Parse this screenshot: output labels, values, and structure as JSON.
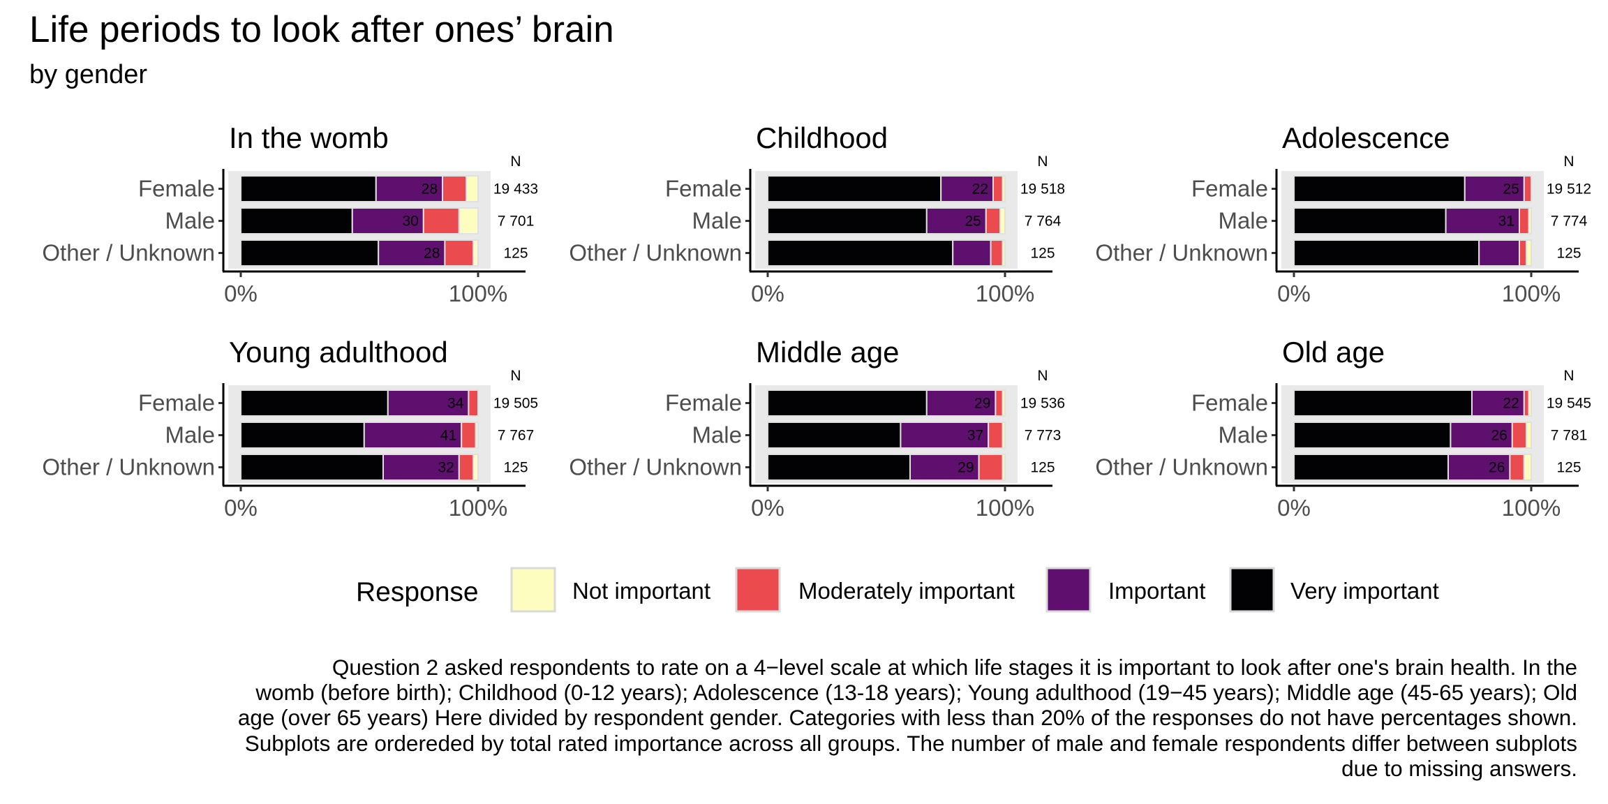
{
  "title": "Life periods to look after ones’ brain",
  "subtitle": "by gender",
  "colors": {
    "not_important": "#FCFDBF",
    "moderately_important": "#EB4B4F",
    "important": "#5F0F6E",
    "very_important": "#020205",
    "panel_background": "#E9E9E9",
    "axis": "#000000"
  },
  "chart_data": {
    "type": "bar",
    "orientation": "horizontal",
    "stacked": true,
    "normalized": true,
    "xlim": [
      0,
      100
    ],
    "x_ticks": [
      "0%",
      "100%"
    ],
    "n_header": "N",
    "categories": [
      "Female",
      "Male",
      "Other / Unknown"
    ],
    "legend": {
      "title": "Response",
      "position": "bottom",
      "items": [
        {
          "key": "not_important",
          "label": "Not important"
        },
        {
          "key": "moderately_important",
          "label": "Moderately important"
        },
        {
          "key": "important",
          "label": "Important"
        },
        {
          "key": "very_important",
          "label": "Very important"
        }
      ]
    },
    "panels": [
      {
        "title": "In the womb",
        "rows": [
          {
            "category": "Female",
            "n": "19 433",
            "very_important": 57,
            "important": 28,
            "moderately_important": 10,
            "not_important": 5,
            "label": "28"
          },
          {
            "category": "Male",
            "n": "7 701",
            "very_important": 47,
            "important": 30,
            "moderately_important": 15,
            "not_important": 8,
            "label": "30"
          },
          {
            "category": "Other / Unknown",
            "n": "125",
            "very_important": 58,
            "important": 28,
            "moderately_important": 12,
            "not_important": 2,
            "label": "28"
          }
        ]
      },
      {
        "title": "Childhood",
        "rows": [
          {
            "category": "Female",
            "n": "19 518",
            "very_important": 73,
            "important": 22,
            "moderately_important": 4,
            "not_important": 1,
            "label": "22"
          },
          {
            "category": "Male",
            "n": "7 764",
            "very_important": 67,
            "important": 25,
            "moderately_important": 6,
            "not_important": 2,
            "label": "25"
          },
          {
            "category": "Other / Unknown",
            "n": "125",
            "very_important": 78,
            "important": 16,
            "moderately_important": 5,
            "not_important": 1,
            "label": ""
          }
        ]
      },
      {
        "title": "Adolescence",
        "rows": [
          {
            "category": "Female",
            "n": "19 512",
            "very_important": 72,
            "important": 25,
            "moderately_important": 3,
            "not_important": 0,
            "label": "25"
          },
          {
            "category": "Male",
            "n": "7 774",
            "very_important": 64,
            "important": 31,
            "moderately_important": 4,
            "not_important": 1,
            "label": "31"
          },
          {
            "category": "Other / Unknown",
            "n": "125",
            "very_important": 78,
            "important": 17,
            "moderately_important": 3,
            "not_important": 2,
            "label": ""
          }
        ]
      },
      {
        "title": "Young adulthood",
        "rows": [
          {
            "category": "Female",
            "n": "19 505",
            "very_important": 62,
            "important": 34,
            "moderately_important": 4,
            "not_important": 0,
            "label": "34"
          },
          {
            "category": "Male",
            "n": "7 767",
            "very_important": 52,
            "important": 41,
            "moderately_important": 6,
            "not_important": 1,
            "label": "41"
          },
          {
            "category": "Other / Unknown",
            "n": "125",
            "very_important": 60,
            "important": 32,
            "moderately_important": 6,
            "not_important": 2,
            "label": "32"
          }
        ]
      },
      {
        "title": "Middle age",
        "rows": [
          {
            "category": "Female",
            "n": "19 536",
            "very_important": 67,
            "important": 29,
            "moderately_important": 3,
            "not_important": 1,
            "label": "29"
          },
          {
            "category": "Male",
            "n": "7 773",
            "very_important": 56,
            "important": 37,
            "moderately_important": 6,
            "not_important": 1,
            "label": "37"
          },
          {
            "category": "Other / Unknown",
            "n": "125",
            "very_important": 60,
            "important": 29,
            "moderately_important": 10,
            "not_important": 1,
            "label": "29"
          }
        ]
      },
      {
        "title": "Old age",
        "rows": [
          {
            "category": "Female",
            "n": "19 545",
            "very_important": 75,
            "important": 22,
            "moderately_important": 2,
            "not_important": 1,
            "label": "22"
          },
          {
            "category": "Male",
            "n": "7 781",
            "very_important": 66,
            "important": 26,
            "moderately_important": 6,
            "not_important": 2,
            "label": "26"
          },
          {
            "category": "Other / Unknown",
            "n": "125",
            "very_important": 65,
            "important": 26,
            "moderately_important": 6,
            "not_important": 3,
            "label": "26"
          }
        ]
      }
    ]
  },
  "caption_lines": [
    "Question 2 asked respondents to rate on a 4−level scale at which life stages it is important to look after one's brain health. In the",
    "womb (before birth); Childhood (0-12 years); Adolescence (13-18 years); Young adulthood (19−45 years); Middle age (45-65 years); Old",
    "age (over 65 years) Here divided by respondent gender. Categories with less than 20% of the responses do not have percentages shown.",
    "Subplots are ordereded by total rated importance across all groups. The number of male and female respondents differ between subplots",
    "due to missing answers."
  ]
}
